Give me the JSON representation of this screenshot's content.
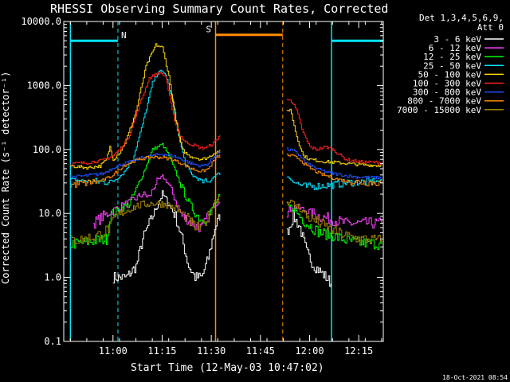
{
  "chart_data": {
    "type": "line",
    "title": "RHESSI Observing Summary Count Rates, Corrected",
    "xlabel": "Start Time (12-May-03 10:47:02)",
    "ylabel": "Corrected Count Rate (s⁻¹ detector⁻¹)",
    "y_scale": "log",
    "ylim": [
      0.1,
      10000
    ],
    "xlim_minutes": [
      -2.03,
      95.5
    ],
    "x_ticks": [
      {
        "label": "11:00",
        "t": 13
      },
      {
        "label": "11:15",
        "t": 28
      },
      {
        "label": "11:30",
        "t": 43
      },
      {
        "label": "11:45",
        "t": 58
      },
      {
        "label": "12:00",
        "t": 73
      },
      {
        "label": "12:15",
        "t": 88
      }
    ],
    "y_ticks": [
      {
        "label": "10000.0",
        "v": 10000
      },
      {
        "label": "1000.0",
        "v": 1000
      },
      {
        "label": "100.0",
        "v": 100
      },
      {
        "label": "10.0",
        "v": 10
      },
      {
        "label": "1.0",
        "v": 1
      },
      {
        "label": "0.1",
        "v": 0.1
      }
    ],
    "legend_header": [
      "Det 1,3,4,5,6,9,",
      "Att 0"
    ],
    "legend_placement": "right",
    "footer_timestamp": "18-Oct-2021 08:54",
    "markers": [
      {
        "label": "N",
        "color": "#00e5ff",
        "bar_start": 0,
        "bar_end": 14.5,
        "bar_level": 5000,
        "dashed_at": 14.5
      },
      {
        "label": "",
        "color": "#00e5ff",
        "bar_start": 79.7,
        "bar_end": 95.5,
        "bar_level": 5000,
        "dashed_at": 95.5
      },
      {
        "label": "S",
        "color": "#ff8c00",
        "bar_start": 44.3,
        "bar_end": 64.8,
        "bar_level": 6200,
        "dashed_at": 64.8
      }
    ],
    "solid_lines": [
      {
        "color": "#00e5ff",
        "t": 0
      },
      {
        "color": "#ff8c00",
        "t": 44.3
      },
      {
        "color": "#00e5ff",
        "t": 79.7
      }
    ],
    "gap": [
      46.4,
      64.8
    ],
    "series": [
      {
        "name": "3 - 6 keV",
        "color": "#ffffff",
        "points": [
          [
            13,
            1.0
          ],
          [
            17,
            1.0
          ],
          [
            20,
            1.5
          ],
          [
            22,
            4
          ],
          [
            24,
            7
          ],
          [
            26,
            12
          ],
          [
            28,
            20
          ],
          [
            30,
            14
          ],
          [
            32,
            9
          ],
          [
            34,
            4
          ],
          [
            36,
            1.5
          ],
          [
            38,
            1.0
          ],
          [
            40,
            1.0
          ],
          [
            42,
            2
          ],
          [
            44,
            6
          ],
          [
            46,
            10
          ],
          [
            66,
            5
          ],
          [
            68,
            9
          ],
          [
            70,
            6
          ],
          [
            72,
            2.5
          ],
          [
            74,
            1.6
          ],
          [
            78,
            1.0
          ],
          [
            79.5,
            0.8
          ]
        ]
      },
      {
        "name": "6 - 12 keV",
        "color": "#ff40ff",
        "points": [
          [
            7,
            7
          ],
          [
            10,
            9
          ],
          [
            14,
            12
          ],
          [
            18,
            15
          ],
          [
            22,
            20
          ],
          [
            24,
            18
          ],
          [
            26,
            30
          ],
          [
            28,
            38
          ],
          [
            30,
            28
          ],
          [
            32,
            16
          ],
          [
            34,
            9
          ],
          [
            36,
            8
          ],
          [
            38,
            6.5
          ],
          [
            40,
            6
          ],
          [
            42,
            9
          ],
          [
            44,
            14
          ],
          [
            46,
            18
          ],
          [
            66,
            10
          ],
          [
            68,
            13
          ],
          [
            70,
            12
          ],
          [
            72,
            11
          ],
          [
            76,
            9
          ],
          [
            80,
            8
          ],
          [
            84,
            7
          ],
          [
            88,
            7
          ],
          [
            95,
            7
          ]
        ]
      },
      {
        "name": "12 - 25 keV",
        "color": "#00ff00",
        "points": [
          [
            0,
            3.3
          ],
          [
            4,
            3.5
          ],
          [
            8,
            3.8
          ],
          [
            11,
            4
          ],
          [
            12,
            9
          ],
          [
            14,
            11
          ],
          [
            18,
            14
          ],
          [
            22,
            40
          ],
          [
            25,
            100
          ],
          [
            28,
            120
          ],
          [
            30,
            80
          ],
          [
            32,
            45
          ],
          [
            34,
            25
          ],
          [
            36,
            15
          ],
          [
            38,
            10
          ],
          [
            40,
            8
          ],
          [
            42,
            9
          ],
          [
            44,
            14
          ],
          [
            46,
            20
          ],
          [
            66,
            13
          ],
          [
            68,
            12
          ],
          [
            70,
            9
          ],
          [
            72,
            7
          ],
          [
            76,
            5
          ],
          [
            80,
            4.5
          ],
          [
            84,
            3.8
          ],
          [
            88,
            3.5
          ],
          [
            95,
            3.3
          ]
        ]
      },
      {
        "name": "25 - 50 keV",
        "color": "#00e5ff",
        "points": [
          [
            0,
            34
          ],
          [
            5,
            32
          ],
          [
            10,
            31
          ],
          [
            13,
            32
          ],
          [
            16,
            42
          ],
          [
            19,
            70
          ],
          [
            22,
            250
          ],
          [
            25,
            1100
          ],
          [
            27,
            1700
          ],
          [
            29,
            1500
          ],
          [
            31,
            600
          ],
          [
            33,
            160
          ],
          [
            35,
            60
          ],
          [
            37,
            40
          ],
          [
            40,
            32
          ],
          [
            42,
            30
          ],
          [
            44,
            40
          ],
          [
            46,
            42
          ],
          [
            66,
            38
          ],
          [
            68,
            32
          ],
          [
            70,
            28
          ],
          [
            72,
            26
          ],
          [
            76,
            27
          ],
          [
            80,
            28
          ],
          [
            84,
            30
          ],
          [
            88,
            31
          ],
          [
            95,
            32
          ]
        ]
      },
      {
        "name": "50 - 100 keV",
        "color": "#ffd700",
        "points": [
          [
            0,
            55
          ],
          [
            5,
            52
          ],
          [
            9,
            55
          ],
          [
            11,
            70
          ],
          [
            12,
            110
          ],
          [
            13,
            70
          ],
          [
            15,
            90
          ],
          [
            17,
            140
          ],
          [
            20,
            400
          ],
          [
            23,
            2000
          ],
          [
            26,
            4300
          ],
          [
            28,
            3900
          ],
          [
            30,
            1400
          ],
          [
            32,
            300
          ],
          [
            34,
            100
          ],
          [
            36,
            80
          ],
          [
            40,
            70
          ],
          [
            42,
            75
          ],
          [
            44,
            90
          ],
          [
            46,
            95
          ],
          [
            66,
            390
          ],
          [
            67,
            430
          ],
          [
            69,
            160
          ],
          [
            71,
            80
          ],
          [
            73,
            70
          ],
          [
            77,
            65
          ],
          [
            82,
            62
          ],
          [
            88,
            58
          ],
          [
            95,
            56
          ]
        ]
      },
      {
        "name": "100 - 300 keV",
        "color": "#ff2020",
        "points": [
          [
            0,
            60
          ],
          [
            5,
            62
          ],
          [
            10,
            68
          ],
          [
            13,
            80
          ],
          [
            15,
            100
          ],
          [
            18,
            170
          ],
          [
            21,
            500
          ],
          [
            24,
            1300
          ],
          [
            27,
            1600
          ],
          [
            29,
            1400
          ],
          [
            31,
            400
          ],
          [
            33,
            180
          ],
          [
            35,
            130
          ],
          [
            37,
            120
          ],
          [
            40,
            105
          ],
          [
            42,
            110
          ],
          [
            44,
            130
          ],
          [
            46,
            180
          ],
          [
            66,
            580
          ],
          [
            67,
            620
          ],
          [
            69,
            400
          ],
          [
            71,
            180
          ],
          [
            73,
            110
          ],
          [
            75,
            100
          ],
          [
            78,
            110
          ],
          [
            80,
            100
          ],
          [
            84,
            70
          ],
          [
            88,
            64
          ],
          [
            95,
            62
          ]
        ]
      },
      {
        "name": "300 - 800 keV",
        "color": "#2050ff",
        "points": [
          [
            0,
            37
          ],
          [
            5,
            39
          ],
          [
            10,
            42
          ],
          [
            13,
            52
          ],
          [
            16,
            60
          ],
          [
            19,
            65
          ],
          [
            22,
            75
          ],
          [
            25,
            80
          ],
          [
            28,
            85
          ],
          [
            31,
            80
          ],
          [
            34,
            70
          ],
          [
            37,
            60
          ],
          [
            40,
            55
          ],
          [
            42,
            60
          ],
          [
            44,
            80
          ],
          [
            46,
            95
          ],
          [
            66,
            100
          ],
          [
            68,
            95
          ],
          [
            70,
            80
          ],
          [
            72,
            60
          ],
          [
            76,
            48
          ],
          [
            80,
            42
          ],
          [
            84,
            39
          ],
          [
            88,
            37
          ],
          [
            95,
            36
          ]
        ]
      },
      {
        "name": "800 - 7000 keV",
        "color": "#ff8c00",
        "points": [
          [
            0,
            28
          ],
          [
            5,
            30
          ],
          [
            10,
            33
          ],
          [
            13,
            40
          ],
          [
            16,
            55
          ],
          [
            19,
            65
          ],
          [
            22,
            72
          ],
          [
            25,
            76
          ],
          [
            28,
            75
          ],
          [
            31,
            70
          ],
          [
            34,
            60
          ],
          [
            37,
            50
          ],
          [
            40,
            45
          ],
          [
            42,
            50
          ],
          [
            44,
            70
          ],
          [
            46,
            85
          ],
          [
            66,
            82
          ],
          [
            68,
            78
          ],
          [
            70,
            70
          ],
          [
            72,
            55
          ],
          [
            76,
            42
          ],
          [
            80,
            36
          ],
          [
            84,
            32
          ],
          [
            88,
            31
          ],
          [
            95,
            30
          ]
        ]
      },
      {
        "name": "7000 - 15000 keV",
        "color": "#a08000",
        "points": [
          [
            0,
            3.8
          ],
          [
            4,
            3.9
          ],
          [
            8,
            4.5
          ],
          [
            10,
            5
          ],
          [
            12,
            6
          ],
          [
            14,
            9
          ],
          [
            17,
            11
          ],
          [
            20,
            13
          ],
          [
            23,
            14
          ],
          [
            26,
            14.5
          ],
          [
            29,
            14
          ],
          [
            32,
            12
          ],
          [
            35,
            9
          ],
          [
            38,
            6
          ],
          [
            40,
            6
          ],
          [
            42,
            9
          ],
          [
            44,
            15
          ],
          [
            46,
            21
          ],
          [
            66,
            16
          ],
          [
            68,
            14
          ],
          [
            70,
            12
          ],
          [
            72,
            9
          ],
          [
            76,
            7
          ],
          [
            80,
            5.5
          ],
          [
            84,
            4.5
          ],
          [
            88,
            4
          ],
          [
            95,
            3.8
          ]
        ]
      }
    ]
  }
}
